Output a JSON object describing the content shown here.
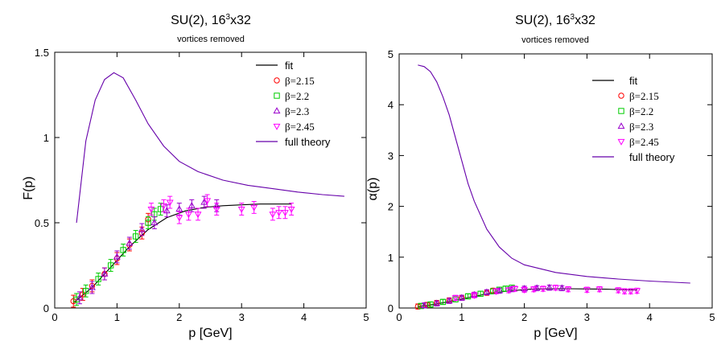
{
  "chart_data": [
    {
      "type": "scatter",
      "title_main": "SU(2), 16",
      "title_sup": "3",
      "title_tail": "x32",
      "subtitle": "vortices removed",
      "xlabel": "p [GeV]",
      "ylabel": "F(p)",
      "xlim": [
        0,
        5
      ],
      "ylim": [
        0,
        1.5
      ],
      "xticks": [
        "0",
        "1",
        "2",
        "3",
        "4",
        "5"
      ],
      "yticks": [
        "0",
        "0.5",
        "1",
        "1.5"
      ],
      "ytick_values": [
        0,
        0.5,
        1,
        1.5
      ],
      "legend_position": "top-right",
      "series": [
        {
          "name": "fit",
          "kind": "line",
          "color": "#000000",
          "x": [
            0.3,
            0.6,
            0.9,
            1.2,
            1.5,
            1.8,
            2.1,
            2.4,
            2.7,
            3.0,
            3.3,
            3.6,
            3.8
          ],
          "y": [
            0.03,
            0.12,
            0.24,
            0.36,
            0.46,
            0.53,
            0.57,
            0.59,
            0.6,
            0.605,
            0.61,
            0.61,
            0.61
          ]
        },
        {
          "name": "β=2.15",
          "kind": "marker",
          "marker": "circle",
          "color": "#ff0000",
          "x": [
            0.3,
            0.45,
            0.6,
            0.8,
            1.0,
            1.2,
            1.4,
            1.5
          ],
          "y": [
            0.04,
            0.08,
            0.13,
            0.2,
            0.29,
            0.37,
            0.44,
            0.52
          ]
        },
        {
          "name": "β=2.2",
          "kind": "marker",
          "marker": "square",
          "color": "#00cc00",
          "x": [
            0.35,
            0.5,
            0.7,
            0.9,
            1.1,
            1.3,
            1.5,
            1.6,
            1.7
          ],
          "y": [
            0.05,
            0.1,
            0.17,
            0.25,
            0.34,
            0.42,
            0.5,
            0.55,
            0.58
          ]
        },
        {
          "name": "β=2.3",
          "kind": "marker",
          "marker": "triangle-up",
          "color": "#9900cc",
          "x": [
            0.4,
            0.6,
            0.8,
            1.0,
            1.2,
            1.4,
            1.6,
            1.8,
            2.0,
            2.2,
            2.4,
            2.6
          ],
          "y": [
            0.06,
            0.12,
            0.2,
            0.3,
            0.38,
            0.46,
            0.5,
            0.57,
            0.58,
            0.6,
            0.62,
            0.6
          ]
        },
        {
          "name": "β=2.45",
          "kind": "marker",
          "marker": "triangle-down",
          "color": "#ff00ff",
          "x": [
            1.55,
            1.75,
            1.85,
            2.0,
            2.15,
            2.3,
            2.45,
            2.6,
            3.0,
            3.2,
            3.5,
            3.6,
            3.7,
            3.8
          ],
          "y": [
            0.58,
            0.6,
            0.62,
            0.53,
            0.55,
            0.55,
            0.63,
            0.58,
            0.58,
            0.59,
            0.55,
            0.56,
            0.56,
            0.58
          ]
        },
        {
          "name": "full theory",
          "kind": "line",
          "color": "#6600aa",
          "x": [
            0.35,
            0.5,
            0.65,
            0.8,
            0.95,
            1.1,
            1.3,
            1.5,
            1.75,
            2.0,
            2.3,
            2.7,
            3.1,
            3.5,
            3.9,
            4.3,
            4.65
          ],
          "y": [
            0.5,
            0.98,
            1.22,
            1.34,
            1.38,
            1.35,
            1.22,
            1.08,
            0.95,
            0.86,
            0.8,
            0.75,
            0.72,
            0.7,
            0.68,
            0.665,
            0.655
          ]
        }
      ]
    },
    {
      "type": "scatter",
      "title_main": "SU(2), 16",
      "title_sup": "3",
      "title_tail": "x32",
      "subtitle": "vortices removed",
      "xlabel": "p [GeV]",
      "ylabel": "α(p)",
      "xlim": [
        0,
        5
      ],
      "ylim": [
        0,
        5
      ],
      "xticks": [
        "0",
        "1",
        "2",
        "3",
        "4",
        "5"
      ],
      "yticks": [
        "0",
        "1",
        "2",
        "3",
        "4",
        "5"
      ],
      "ytick_values": [
        0,
        1,
        2,
        3,
        4,
        5
      ],
      "legend_position": "top-right",
      "series": [
        {
          "name": "fit",
          "kind": "line",
          "color": "#000000",
          "x": [
            0.3,
            0.6,
            0.9,
            1.2,
            1.5,
            1.8,
            2.1,
            2.4,
            2.7,
            3.0,
            3.3,
            3.6,
            3.8
          ],
          "y": [
            0.02,
            0.08,
            0.15,
            0.23,
            0.3,
            0.34,
            0.37,
            0.38,
            0.38,
            0.375,
            0.37,
            0.36,
            0.355
          ]
        },
        {
          "name": "β=2.15",
          "kind": "marker",
          "marker": "circle",
          "color": "#ff0000",
          "x": [
            0.3,
            0.45,
            0.6,
            0.8,
            1.0,
            1.2,
            1.4,
            1.5
          ],
          "y": [
            0.03,
            0.06,
            0.1,
            0.15,
            0.2,
            0.26,
            0.3,
            0.34
          ]
        },
        {
          "name": "β=2.2",
          "kind": "marker",
          "marker": "square",
          "color": "#00cc00",
          "x": [
            0.35,
            0.5,
            0.7,
            0.9,
            1.1,
            1.3,
            1.5,
            1.6,
            1.7,
            1.8
          ],
          "y": [
            0.04,
            0.07,
            0.12,
            0.17,
            0.23,
            0.28,
            0.33,
            0.36,
            0.38,
            0.4
          ]
        },
        {
          "name": "β=2.3",
          "kind": "marker",
          "marker": "triangle-up",
          "color": "#9900cc",
          "x": [
            0.4,
            0.6,
            0.8,
            1.0,
            1.2,
            1.4,
            1.6,
            1.8,
            2.0,
            2.2,
            2.4,
            2.6
          ],
          "y": [
            0.05,
            0.09,
            0.14,
            0.2,
            0.26,
            0.31,
            0.34,
            0.37,
            0.38,
            0.39,
            0.4,
            0.39
          ]
        },
        {
          "name": "β=2.45",
          "kind": "marker",
          "marker": "triangle-down",
          "color": "#ff00ff",
          "x": [
            0.9,
            1.2,
            1.55,
            1.75,
            1.85,
            2.0,
            2.15,
            2.3,
            2.5,
            2.7,
            3.0,
            3.2,
            3.5,
            3.6,
            3.7,
            3.8
          ],
          "y": [
            0.2,
            0.25,
            0.33,
            0.35,
            0.38,
            0.36,
            0.37,
            0.38,
            0.4,
            0.37,
            0.36,
            0.37,
            0.35,
            0.33,
            0.33,
            0.34
          ]
        },
        {
          "name": "full theory",
          "kind": "line",
          "color": "#6600aa",
          "x": [
            0.3,
            0.4,
            0.5,
            0.6,
            0.7,
            0.8,
            0.9,
            1.0,
            1.1,
            1.2,
            1.4,
            1.6,
            1.8,
            2.0,
            2.5,
            3.0,
            3.5,
            4.0,
            4.65
          ],
          "y": [
            4.78,
            4.75,
            4.65,
            4.45,
            4.15,
            3.8,
            3.35,
            2.9,
            2.45,
            2.1,
            1.55,
            1.2,
            0.98,
            0.85,
            0.7,
            0.62,
            0.57,
            0.53,
            0.49
          ]
        }
      ]
    }
  ]
}
